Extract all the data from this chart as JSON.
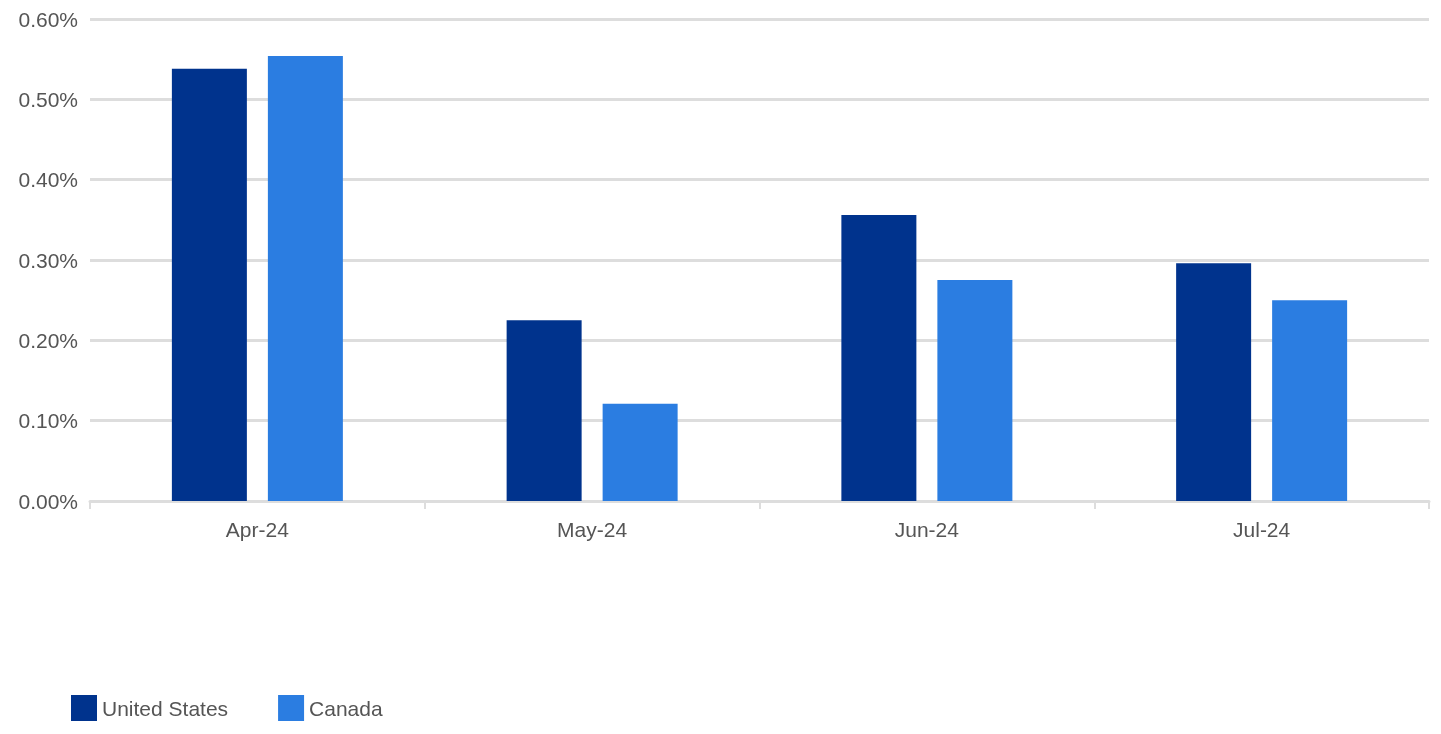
{
  "chart_data": {
    "type": "bar",
    "categories": [
      "Apr-24",
      "May-24",
      "Jun-24",
      "Jul-24"
    ],
    "series": [
      {
        "name": "United States",
        "color": "#00338d",
        "values": [
          0.538,
          0.225,
          0.356,
          0.296
        ]
      },
      {
        "name": "Canada",
        "color": "#2b7de1",
        "values": [
          0.554,
          0.121,
          0.275,
          0.25
        ]
      }
    ],
    "ylim": [
      0,
      0.6
    ],
    "yticks": [
      {
        "value": 0,
        "label": "0.00%"
      },
      {
        "value": 0.1,
        "label": "0.10%"
      },
      {
        "value": 0.2,
        "label": "0.20%"
      },
      {
        "value": 0.3,
        "label": "0.30%"
      },
      {
        "value": 0.4,
        "label": "0.40%"
      },
      {
        "value": 0.5,
        "label": "0.50%"
      },
      {
        "value": 0.6,
        "label": "0.60%"
      }
    ],
    "grid": "y",
    "legend": "bottom left"
  }
}
